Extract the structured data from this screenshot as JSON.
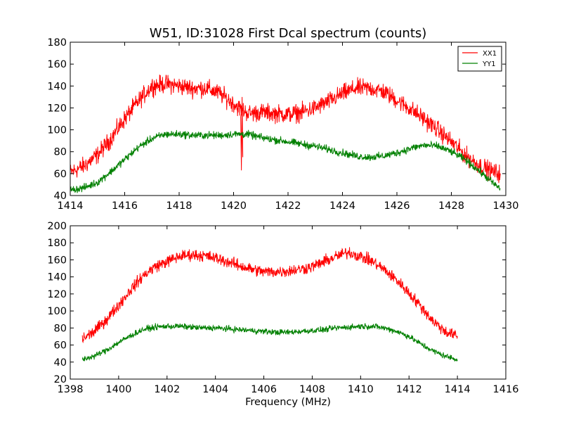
{
  "figure_title": "W51, ID:31028 First Dcal spectrum (counts)",
  "chart_data": [
    {
      "type": "line",
      "title": "W51, ID:31028 First Dcal spectrum (counts)",
      "xlabel": "",
      "ylabel": "",
      "xlim": [
        1414,
        1430
      ],
      "ylim": [
        40,
        180
      ],
      "xticks": [
        1414,
        1416,
        1418,
        1420,
        1422,
        1424,
        1426,
        1428,
        1430
      ],
      "yticks": [
        40,
        60,
        80,
        100,
        120,
        140,
        160,
        180
      ],
      "grid": false,
      "legend": "top-right",
      "series": [
        {
          "name": "XX1",
          "color": "#ff0000",
          "noise": 7,
          "x": [
            1414.0,
            1414.5,
            1415.0,
            1415.5,
            1416.0,
            1416.5,
            1417.0,
            1417.5,
            1418.0,
            1418.5,
            1419.0,
            1419.5,
            1420.0,
            1420.3,
            1420.6,
            1421.0,
            1421.5,
            1422.0,
            1422.5,
            1423.0,
            1423.5,
            1424.0,
            1424.5,
            1425.0,
            1425.5,
            1426.0,
            1426.5,
            1427.0,
            1427.5,
            1428.0,
            1428.5,
            1429.0,
            1429.5,
            1429.8
          ],
          "y": [
            61,
            67,
            77,
            92,
            110,
            126,
            140,
            142,
            140,
            138,
            138,
            133,
            124,
            118,
            115,
            116,
            115,
            114,
            116,
            120,
            126,
            133,
            138,
            138,
            135,
            127,
            119,
            110,
            100,
            89,
            77,
            68,
            62,
            60
          ]
        },
        {
          "name": "YY1",
          "color": "#008000",
          "noise": 3,
          "x": [
            1414.0,
            1414.5,
            1415.0,
            1415.5,
            1416.0,
            1416.5,
            1417.0,
            1417.5,
            1418.0,
            1418.5,
            1419.0,
            1419.5,
            1420.0,
            1420.5,
            1421.0,
            1421.5,
            1422.0,
            1422.5,
            1423.0,
            1423.5,
            1424.0,
            1424.5,
            1425.0,
            1425.5,
            1426.0,
            1426.5,
            1427.0,
            1427.5,
            1428.0,
            1428.5,
            1429.0,
            1429.5,
            1429.8
          ],
          "y": [
            45,
            47,
            52,
            62,
            73,
            84,
            92,
            96,
            96,
            95,
            95,
            95,
            96,
            96,
            93,
            91,
            89,
            87,
            85,
            82,
            79,
            76,
            75,
            76,
            79,
            83,
            86,
            85,
            80,
            73,
            63,
            52,
            46
          ]
        }
      ],
      "spike": {
        "x": 1420.3,
        "values": [
          112,
          63,
          130,
          75
        ]
      }
    },
    {
      "type": "line",
      "title": "",
      "xlabel": "Frequency (MHz)",
      "ylabel": "",
      "xlim": [
        1398,
        1416
      ],
      "ylim": [
        20,
        200
      ],
      "xticks": [
        1398,
        1400,
        1402,
        1404,
        1406,
        1408,
        1410,
        1412,
        1414,
        1416
      ],
      "yticks": [
        20,
        40,
        60,
        80,
        100,
        120,
        140,
        160,
        180,
        200
      ],
      "grid": false,
      "legend": "none",
      "series": [
        {
          "name": "XX1",
          "color": "#ff0000",
          "noise": 6,
          "x": [
            1398.5,
            1399.0,
            1399.5,
            1400.0,
            1400.5,
            1401.0,
            1401.5,
            1402.0,
            1402.5,
            1403.0,
            1403.5,
            1404.0,
            1404.5,
            1405.0,
            1405.5,
            1406.0,
            1406.5,
            1407.0,
            1407.5,
            1408.0,
            1408.5,
            1409.0,
            1409.5,
            1410.0,
            1410.5,
            1411.0,
            1411.5,
            1412.0,
            1412.5,
            1413.0,
            1413.5,
            1414.0
          ],
          "y": [
            67,
            76,
            90,
            107,
            125,
            141,
            152,
            158,
            164,
            166,
            165,
            162,
            158,
            153,
            149,
            146,
            146,
            147,
            149,
            152,
            158,
            164,
            169,
            164,
            158,
            148,
            136,
            121,
            105,
            88,
            76,
            70
          ]
        },
        {
          "name": "YY1",
          "color": "#008000",
          "noise": 3,
          "x": [
            1398.5,
            1399.0,
            1399.5,
            1400.0,
            1400.5,
            1401.0,
            1401.5,
            1402.0,
            1402.5,
            1403.0,
            1403.5,
            1404.0,
            1404.5,
            1405.0,
            1405.5,
            1406.0,
            1406.5,
            1407.0,
            1407.5,
            1408.0,
            1408.5,
            1409.0,
            1409.5,
            1410.0,
            1410.5,
            1411.0,
            1411.5,
            1412.0,
            1412.5,
            1413.0,
            1413.5,
            1414.0
          ],
          "y": [
            43,
            47,
            54,
            63,
            71,
            78,
            81,
            82,
            82,
            81,
            80,
            80,
            79,
            78,
            77,
            76,
            75,
            75,
            76,
            77,
            78,
            80,
            81,
            82,
            82,
            80,
            76,
            70,
            61,
            53,
            47,
            43
          ]
        }
      ]
    }
  ]
}
